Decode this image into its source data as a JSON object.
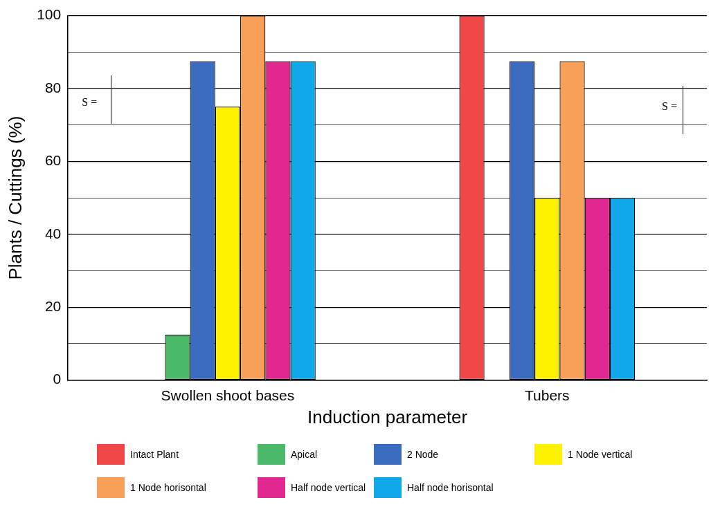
{
  "chart_data": {
    "type": "bar",
    "xlabel": "Induction parameter",
    "ylabel": "Plants / Cuttings (%)",
    "categories": [
      "Swollen shoot bases",
      "Tubers"
    ],
    "series": [
      {
        "name": "Intact Plant",
        "color": "#f04848",
        "values": [
          0,
          100
        ]
      },
      {
        "name": "Apical",
        "color": "#4cb86a",
        "values": [
          12.5,
          0
        ]
      },
      {
        "name": "2 Node",
        "color": "#3a6cc0",
        "values": [
          87.5,
          87.5
        ]
      },
      {
        "name": "1 Node vertical",
        "color": "#fff200",
        "values": [
          75,
          50
        ]
      },
      {
        "name": "1 Node horisontal",
        "color": "#f8a058",
        "values": [
          100,
          87.5
        ]
      },
      {
        "name": "Half node vertical",
        "color": "#e02890",
        "values": [
          87.5,
          50
        ]
      },
      {
        "name": "Half node horisontal",
        "color": "#10a8e8",
        "values": [
          87.5,
          50
        ]
      }
    ],
    "ylim": [
      0,
      100
    ],
    "yticks": [
      0,
      {
        "value": 10,
        "label": null
      },
      20,
      {
        "value": 30,
        "label": null
      },
      40,
      {
        "value": 50,
        "label": null
      },
      60,
      {
        "value": 70,
        "label": null
      },
      80,
      {
        "value": 90,
        "label": null
      },
      100
    ],
    "grid": "y",
    "legend": "bottom",
    "annotations": [
      "S =",
      "S ="
    ]
  }
}
